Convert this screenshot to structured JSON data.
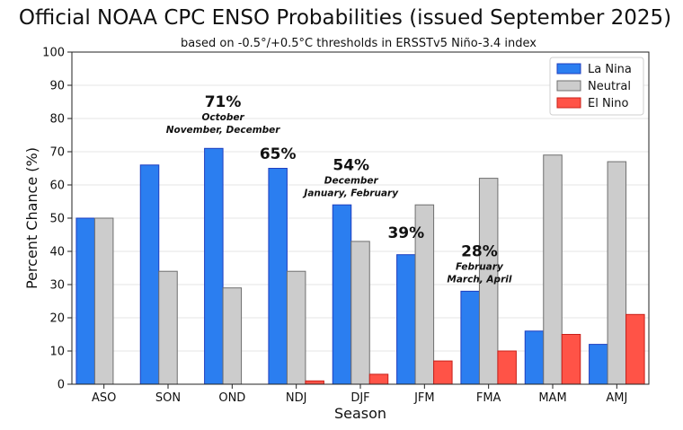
{
  "chart_data": {
    "type": "bar",
    "title": "Official NOAA CPC ENSO Probabilities (issued September 2025)",
    "subtitle": "based on -0.5°/+0.5°C thresholds in ERSSTv5 Niño-3.4 index",
    "xlabel": "Season",
    "ylabel": "Percent Chance (%)",
    "ylim": [
      0,
      100
    ],
    "yticks": [
      0,
      10,
      20,
      30,
      40,
      50,
      60,
      70,
      80,
      90,
      100
    ],
    "grid": true,
    "legend_position": "top-right",
    "categories": [
      "ASO",
      "SON",
      "OND",
      "NDJ",
      "DJF",
      "JFM",
      "FMA",
      "MAM",
      "AMJ"
    ],
    "series": [
      {
        "name": "La Nina",
        "color": "#2b7ef0",
        "edge": "#1f3fbf",
        "values": [
          50,
          66,
          71,
          65,
          54,
          39,
          28,
          16,
          12
        ]
      },
      {
        "name": "Neutral",
        "color": "#cccccc",
        "edge": "#6f6f6f",
        "values": [
          50,
          34,
          29,
          34,
          43,
          54,
          62,
          69,
          67
        ]
      },
      {
        "name": "El Nino",
        "color": "#ff5347",
        "edge": "#c8201a",
        "values": [
          0,
          0,
          0,
          1,
          3,
          7,
          10,
          15,
          21
        ]
      }
    ],
    "annotations": [
      {
        "category": "OND",
        "value_y": 83.5,
        "pct": "71%",
        "lines": [
          "October",
          "November, December"
        ]
      },
      {
        "category": "NDJ",
        "value_y": 67.8,
        "pct": "65%",
        "lines": []
      },
      {
        "category": "DJF",
        "value_y": 64.5,
        "pct": "54%",
        "lines": [
          "December",
          "January, February"
        ]
      },
      {
        "category": "JFM",
        "value_y": 44.0,
        "pct": "39%",
        "lines": []
      },
      {
        "category": "FMA",
        "value_y": 38.5,
        "pct": "28%",
        "lines": [
          "February",
          "March, April"
        ]
      }
    ]
  }
}
